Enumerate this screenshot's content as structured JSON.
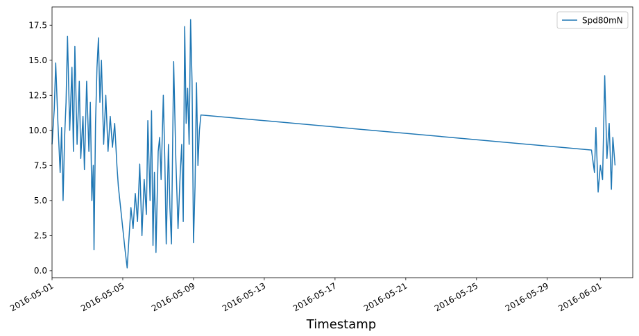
{
  "chart_data": {
    "type": "line",
    "title": "",
    "xlabel": "Timestamp",
    "ylabel": "",
    "xlim": [
      "2016-05-01",
      "2016-06-02 20:00"
    ],
    "ylim": [
      -0.5,
      18.8
    ],
    "grid": false,
    "legend_position": "top-right",
    "x_ticks": [
      "2016-05-01",
      "2016-05-05",
      "2016-05-09",
      "2016-05-13",
      "2016-05-17",
      "2016-05-21",
      "2016-05-25",
      "2016-05-29",
      "2016-06-01"
    ],
    "y_ticks": [
      "0.0",
      "2.5",
      "5.0",
      "7.5",
      "10.0",
      "12.5",
      "15.0",
      "17.5"
    ],
    "series": [
      {
        "name": "Spd80mN",
        "color": "#1f77b4",
        "points": [
          [
            "2016-05-01 00:00",
            9.0
          ],
          [
            "2016-05-01 03:00",
            11.5
          ],
          [
            "2016-05-01 05:00",
            14.8
          ],
          [
            "2016-05-01 08:00",
            10.5
          ],
          [
            "2016-05-01 11:00",
            7.0
          ],
          [
            "2016-05-01 13:00",
            10.2
          ],
          [
            "2016-05-01 15:00",
            5.0
          ],
          [
            "2016-05-01 17:00",
            9.5
          ],
          [
            "2016-05-01 19:00",
            12.0
          ],
          [
            "2016-05-01 21:00",
            16.7
          ],
          [
            "2016-05-02 00:00",
            10.0
          ],
          [
            "2016-05-02 03:00",
            14.5
          ],
          [
            "2016-05-02 05:00",
            8.5
          ],
          [
            "2016-05-02 07:00",
            16.0
          ],
          [
            "2016-05-02 10:00",
            9.0
          ],
          [
            "2016-05-02 13:00",
            13.5
          ],
          [
            "2016-05-02 15:00",
            8.0
          ],
          [
            "2016-05-02 18:00",
            11.0
          ],
          [
            "2016-05-02 20:00",
            7.2
          ],
          [
            "2016-05-02 23:00",
            13.5
          ],
          [
            "2016-05-03 02:00",
            8.5
          ],
          [
            "2016-05-03 04:00",
            12.0
          ],
          [
            "2016-05-03 06:00",
            5.0
          ],
          [
            "2016-05-03 08:00",
            7.5
          ],
          [
            "2016-05-03 09:00",
            1.5
          ],
          [
            "2016-05-03 11:00",
            10.5
          ],
          [
            "2016-05-03 13:00",
            14.5
          ],
          [
            "2016-05-03 15:00",
            16.6
          ],
          [
            "2016-05-03 17:00",
            12.0
          ],
          [
            "2016-05-03 19:00",
            15.0
          ],
          [
            "2016-05-03 22:00",
            9.0
          ],
          [
            "2016-05-04 01:00",
            12.5
          ],
          [
            "2016-05-04 04:00",
            8.5
          ],
          [
            "2016-05-04 07:00",
            11.0
          ],
          [
            "2016-05-04 10:00",
            8.8
          ],
          [
            "2016-05-04 13:00",
            10.5
          ],
          [
            "2016-05-04 16:00",
            7.5
          ],
          [
            "2016-05-04 18:00",
            6.0
          ],
          [
            "2016-05-04 21:00",
            4.5
          ],
          [
            "2016-05-05 00:00",
            3.0
          ],
          [
            "2016-05-05 03:00",
            1.5
          ],
          [
            "2016-05-05 06:00",
            0.2
          ],
          [
            "2016-05-05 08:00",
            2.0
          ],
          [
            "2016-05-05 11:00",
            4.5
          ],
          [
            "2016-05-05 14:00",
            3.0
          ],
          [
            "2016-05-05 17:00",
            5.5
          ],
          [
            "2016-05-05 20:00",
            3.5
          ],
          [
            "2016-05-05 23:00",
            7.6
          ],
          [
            "2016-05-06 02:00",
            2.5
          ],
          [
            "2016-05-06 05:00",
            6.5
          ],
          [
            "2016-05-06 08:00",
            4.0
          ],
          [
            "2016-05-06 10:00",
            10.7
          ],
          [
            "2016-05-06 13:00",
            5.0
          ],
          [
            "2016-05-06 15:00",
            11.4
          ],
          [
            "2016-05-06 17:00",
            1.8
          ],
          [
            "2016-05-06 19:00",
            7.0
          ],
          [
            "2016-05-06 21:00",
            1.3
          ],
          [
            "2016-05-07 00:00",
            8.5
          ],
          [
            "2016-05-07 02:00",
            9.5
          ],
          [
            "2016-05-07 04:00",
            6.5
          ],
          [
            "2016-05-07 07:00",
            12.5
          ],
          [
            "2016-05-07 09:00",
            8.0
          ],
          [
            "2016-05-07 11:00",
            1.9
          ],
          [
            "2016-05-07 14:00",
            9.0
          ],
          [
            "2016-05-07 16:00",
            4.5
          ],
          [
            "2016-05-07 18:00",
            1.9
          ],
          [
            "2016-05-07 21:00",
            14.9
          ],
          [
            "2016-05-08 00:00",
            8.0
          ],
          [
            "2016-05-08 03:00",
            3.0
          ],
          [
            "2016-05-08 06:00",
            7.0
          ],
          [
            "2016-05-08 08:00",
            9.0
          ],
          [
            "2016-05-08 10:00",
            3.5
          ],
          [
            "2016-05-08 12:00",
            17.4
          ],
          [
            "2016-05-08 14:00",
            10.5
          ],
          [
            "2016-05-08 16:00",
            13.0
          ],
          [
            "2016-05-08 18:00",
            9.0
          ],
          [
            "2016-05-08 20:00",
            17.9
          ],
          [
            "2016-05-08 22:00",
            13.5
          ],
          [
            "2016-05-09 00:00",
            2.0
          ],
          [
            "2016-05-09 02:00",
            6.0
          ],
          [
            "2016-05-09 04:00",
            13.4
          ],
          [
            "2016-05-09 06:00",
            7.5
          ],
          [
            "2016-05-09 08:00",
            10.0
          ],
          [
            "2016-05-09 10:00",
            11.1
          ],
          [
            "2016-05-31 12:00",
            8.6
          ],
          [
            "2016-05-31 16:00",
            7.0
          ],
          [
            "2016-05-31 18:00",
            10.2
          ],
          [
            "2016-05-31 21:00",
            5.6
          ],
          [
            "2016-06-01 00:00",
            7.5
          ],
          [
            "2016-06-01 03:00",
            6.5
          ],
          [
            "2016-06-01 06:00",
            13.9
          ],
          [
            "2016-06-01 09:00",
            8.0
          ],
          [
            "2016-06-01 12:00",
            10.5
          ],
          [
            "2016-06-01 15:00",
            5.8
          ],
          [
            "2016-06-01 17:00",
            9.5
          ],
          [
            "2016-06-01 20:00",
            7.5
          ]
        ]
      }
    ]
  }
}
